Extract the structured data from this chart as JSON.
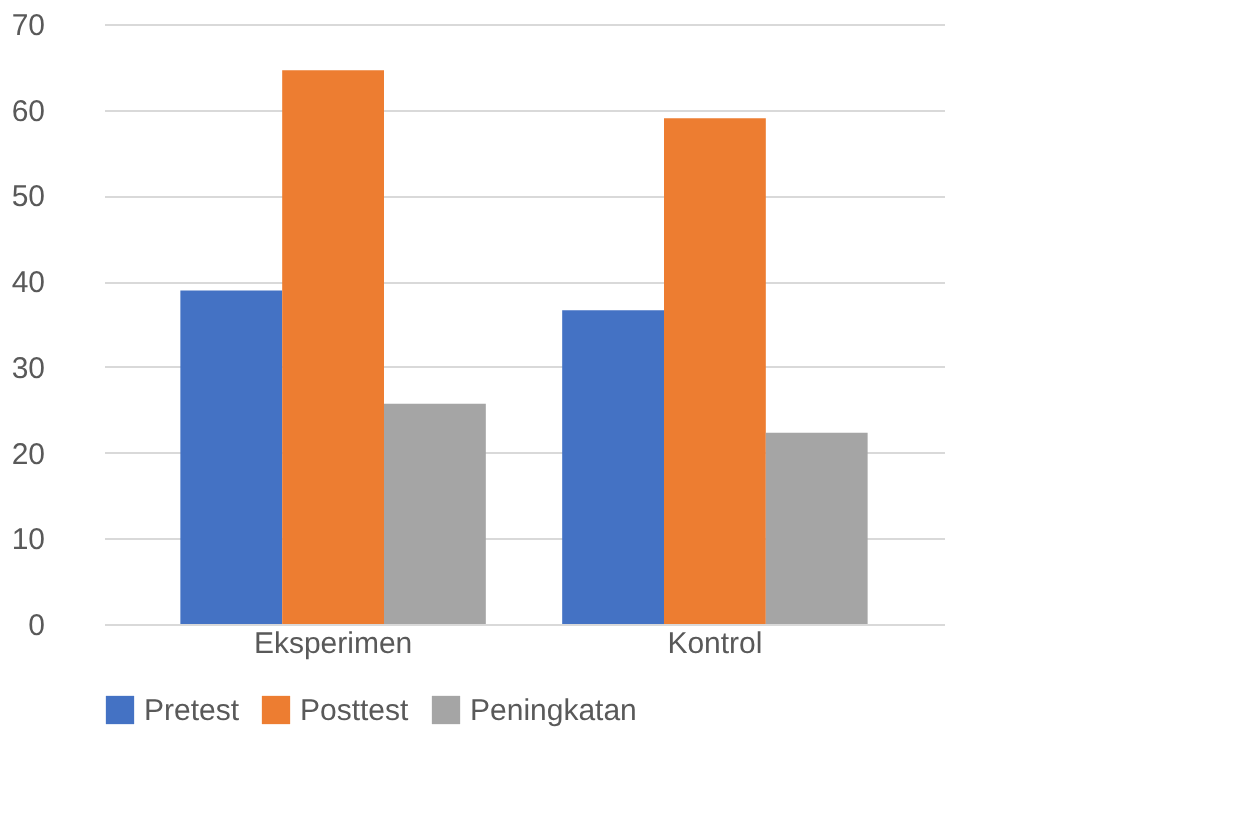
{
  "chart_data": {
    "type": "bar",
    "categories": [
      "Eksperimen",
      "Kontrol"
    ],
    "series": [
      {
        "name": "Pretest",
        "color": "#4472c4",
        "values": [
          38.9,
          36.6
        ]
      },
      {
        "name": "Posttest",
        "color": "#ed7d31",
        "values": [
          64.6,
          59.0
        ]
      },
      {
        "name": "Peningkatan",
        "color": "#a5a5a5",
        "values": [
          25.7,
          22.3
        ]
      }
    ],
    "ylim": [
      0,
      70
    ],
    "yticks": [
      0,
      10,
      20,
      30,
      40,
      50,
      60,
      70
    ],
    "grid": "y",
    "legend": "bottom"
  }
}
